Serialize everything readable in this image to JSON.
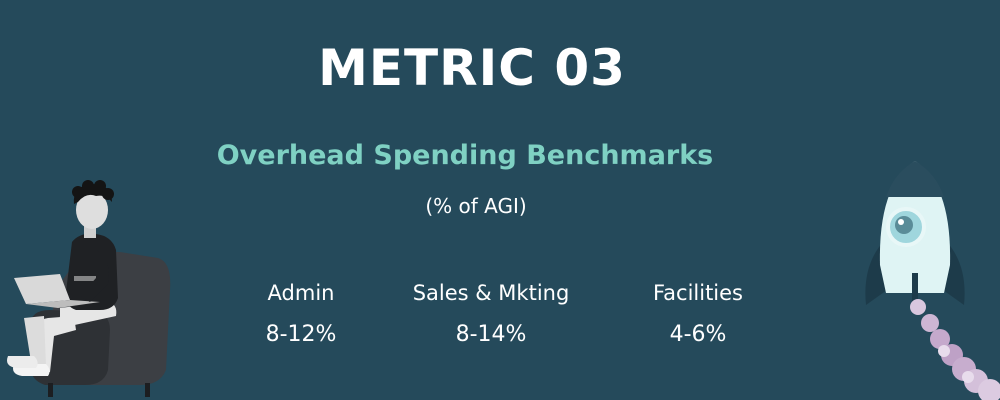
{
  "header": {
    "title": "METRIC 03",
    "subtitle": "Overhead Spending Benchmarks",
    "unit_note": "(% of AGI)"
  },
  "metrics": [
    {
      "label": "Admin",
      "value": "8-12%"
    },
    {
      "label": "Sales & Mkting",
      "value": "8-14%"
    },
    {
      "label": "Facilities",
      "value": "4-6%"
    }
  ],
  "colors": {
    "background": "#254a5b",
    "accent": "#7fd1c3",
    "text": "#ffffff"
  },
  "illustrations": {
    "left": "person-with-laptop-in-armchair",
    "right": "rocket-launching"
  }
}
